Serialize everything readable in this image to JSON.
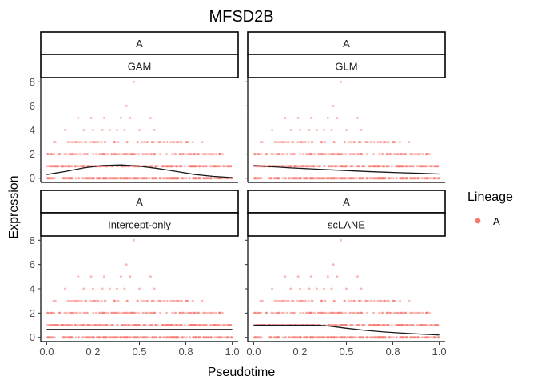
{
  "chart_data": {
    "type": "scatter",
    "title": "MFSD2B",
    "xlabel": "Pseudotime",
    "ylabel": "Expression",
    "xlim": [
      0,
      1
    ],
    "ylim": [
      0,
      8
    ],
    "x_ticks": [
      "0.0",
      "0.2",
      "0.5",
      "0.8",
      "1.0"
    ],
    "x_tick_values": [
      0,
      0.25,
      0.5,
      0.75,
      1
    ],
    "y_ticks": [
      "0",
      "2",
      "4",
      "6",
      "8"
    ],
    "y_tick_values": [
      0,
      2,
      4,
      6,
      8
    ],
    "grid": false,
    "legend": {
      "title": "Lineage",
      "position": "right",
      "entries": [
        {
          "name": "A",
          "color": "#F8766D"
        }
      ]
    },
    "point_color": "#F8766D",
    "fit_color": "#1a1a1a",
    "panels": [
      {
        "strip_top": "A",
        "strip_bottom": "GAM",
        "fit": {
          "x": [
            0,
            0.1,
            0.2,
            0.3,
            0.4,
            0.5,
            0.6,
            0.7,
            0.8,
            0.9,
            1.0
          ],
          "y": [
            0.3,
            0.55,
            0.85,
            1.05,
            1.1,
            1.0,
            0.8,
            0.55,
            0.3,
            0.15,
            0.05
          ]
        }
      },
      {
        "strip_top": "A",
        "strip_bottom": "GLM",
        "fit": {
          "x": [
            0,
            0.1,
            0.2,
            0.3,
            0.4,
            0.5,
            0.6,
            0.7,
            0.8,
            0.9,
            1.0
          ],
          "y": [
            1.05,
            0.95,
            0.85,
            0.78,
            0.7,
            0.63,
            0.56,
            0.5,
            0.45,
            0.4,
            0.35
          ]
        }
      },
      {
        "strip_top": "A",
        "strip_bottom": "Intercept-only",
        "fit": {
          "x": [
            0,
            1.0
          ],
          "y": [
            0.65,
            0.65
          ]
        }
      },
      {
        "strip_top": "A",
        "strip_bottom": "scLANE",
        "fit": {
          "x": [
            0,
            0.1,
            0.2,
            0.3,
            0.35,
            0.4,
            0.5,
            0.6,
            0.7,
            0.8,
            0.9,
            1.0
          ],
          "y": [
            1.0,
            1.0,
            1.0,
            1.0,
            1.0,
            0.95,
            0.75,
            0.58,
            0.45,
            0.35,
            0.27,
            0.2
          ]
        }
      }
    ],
    "points": {
      "levels": [
        {
          "y": 0,
          "x_range": [
            0,
            1
          ],
          "count": 220
        },
        {
          "y": 1,
          "x_range": [
            0,
            1
          ],
          "count": 200
        },
        {
          "y": 2,
          "x_range": [
            0,
            0.97
          ],
          "count": 110
        },
        {
          "y": 3,
          "x_range": [
            0.03,
            0.84
          ],
          "count": 55
        }
      ],
      "sparse": [
        {
          "x": 0.1,
          "y": 4
        },
        {
          "x": 0.2,
          "y": 4
        },
        {
          "x": 0.25,
          "y": 4
        },
        {
          "x": 0.3,
          "y": 4
        },
        {
          "x": 0.34,
          "y": 4
        },
        {
          "x": 0.38,
          "y": 4
        },
        {
          "x": 0.42,
          "y": 4
        },
        {
          "x": 0.5,
          "y": 4
        },
        {
          "x": 0.58,
          "y": 4
        },
        {
          "x": 0.17,
          "y": 5
        },
        {
          "x": 0.24,
          "y": 5
        },
        {
          "x": 0.31,
          "y": 5
        },
        {
          "x": 0.4,
          "y": 5
        },
        {
          "x": 0.45,
          "y": 5
        },
        {
          "x": 0.56,
          "y": 5
        },
        {
          "x": 0.43,
          "y": 6
        },
        {
          "x": 0.47,
          "y": 8
        }
      ]
    }
  }
}
